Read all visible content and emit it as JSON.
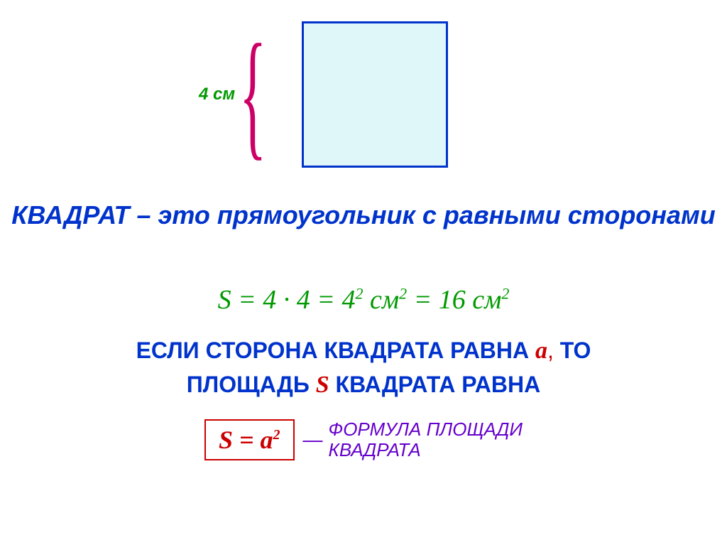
{
  "figure": {
    "side_label": "4 см",
    "square_fill": "#e0f7fa",
    "square_border": "#0033cc",
    "brace_color": "#cc0066",
    "label_color": "#009900"
  },
  "definition": {
    "text": "КВАДРАТ – это прямоугольник с равными сторонами",
    "color": "#0033cc",
    "font_size": 36
  },
  "calc": {
    "prefix": "S = 4 · 4 = 4",
    "exp1": "2",
    "unit1": " см",
    "exp2": "2",
    "eq": " = 16 см",
    "exp3": "2",
    "color": "#009900",
    "font_size": 38
  },
  "rule": {
    "part1": "ЕСЛИ СТОРОНА КВАДРАТА РАВНА ",
    "a": "a",
    "comma": ",",
    "part2": " ТО",
    "part3": "ПЛОЩАДЬ ",
    "s": "S",
    "part4": " КВАДРАТА РАВНА",
    "color": "#0033cc",
    "var_color": "#cc0000",
    "font_size": 32
  },
  "formula": {
    "lhs": "S = a",
    "exp": "2",
    "box_color": "#cc0000",
    "label_line1": "ФОРМУЛА ПЛОЩАДИ",
    "label_line2": "КВАДРАТА",
    "label_color": "#6600cc",
    "dash": "—"
  }
}
